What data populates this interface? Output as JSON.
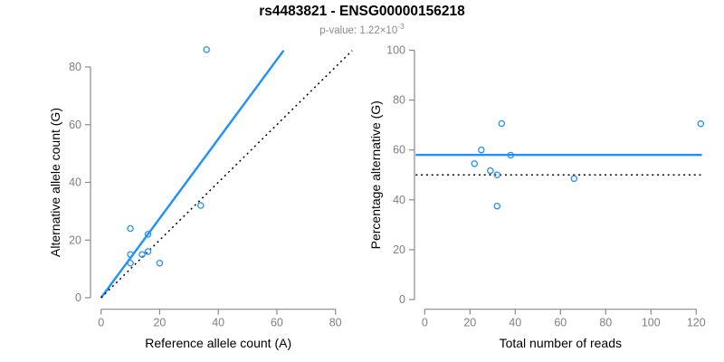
{
  "header": {
    "title": "rs4483821 - ENSG00000156218",
    "subtitle_label": "p-value: 1.22×10",
    "subtitle_exponent": "-3"
  },
  "colors": {
    "accent": "#1E90FF",
    "black_line": "#000000",
    "axis": "#8a8a8a",
    "tick_label": "#7f7f7f",
    "axis_title": "#000000",
    "title": "#000000",
    "subtitle": "#8c8c8c"
  },
  "chart_data": [
    {
      "type": "scatter",
      "name": "allele-counts",
      "xlabel": "Reference allele count (A)",
      "ylabel": "Alternative allele count (G)",
      "xlim": [
        0,
        80
      ],
      "ylim": [
        0,
        80
      ],
      "xticks": [
        0,
        20,
        40,
        60,
        80
      ],
      "yticks": [
        0,
        20,
        40,
        60,
        80
      ],
      "grid": false,
      "legend": "none",
      "points": [
        [
          10,
          24
        ],
        [
          16,
          22
        ],
        [
          10,
          15
        ],
        [
          14,
          15
        ],
        [
          16,
          16
        ],
        [
          10,
          12
        ],
        [
          20,
          12
        ],
        [
          34,
          32
        ],
        [
          36,
          86
        ]
      ],
      "lines": [
        {
          "name": "regression-line",
          "style": "solid",
          "color_key": "accent",
          "points": [
            [
              0,
              0
            ],
            [
              62.3,
              85.7
            ]
          ]
        },
        {
          "name": "identity-line",
          "style": "dotted",
          "color_key": "black_line",
          "points": [
            [
              0,
              0
            ],
            [
              85.7,
              85.7
            ]
          ]
        }
      ]
    },
    {
      "type": "scatter",
      "name": "percentage-alternative",
      "xlabel": "Total number of reads",
      "ylabel": "Percentage alternative (G)",
      "xlim": [
        0,
        120
      ],
      "ylim": [
        0,
        100
      ],
      "xticks": [
        0,
        20,
        40,
        60,
        80,
        100,
        120
      ],
      "yticks": [
        0,
        20,
        40,
        60,
        80,
        100
      ],
      "grid": false,
      "legend": "none",
      "points": [
        [
          34,
          70.6
        ],
        [
          38,
          57.9
        ],
        [
          25,
          60
        ],
        [
          29,
          51.7
        ],
        [
          32,
          50
        ],
        [
          22,
          54.5
        ],
        [
          32,
          37.5
        ],
        [
          66,
          48.5
        ],
        [
          122,
          70.5
        ]
      ],
      "lines": [
        {
          "name": "mean-percentage-line",
          "style": "solid",
          "color_key": "accent",
          "points": [
            [
              -4,
              58
            ],
            [
              122.5,
              58
            ]
          ]
        },
        {
          "name": "fifty-percent-line",
          "style": "dotted",
          "color_key": "black_line",
          "points": [
            [
              -4,
              50
            ],
            [
              122.5,
              50
            ]
          ]
        }
      ]
    }
  ]
}
